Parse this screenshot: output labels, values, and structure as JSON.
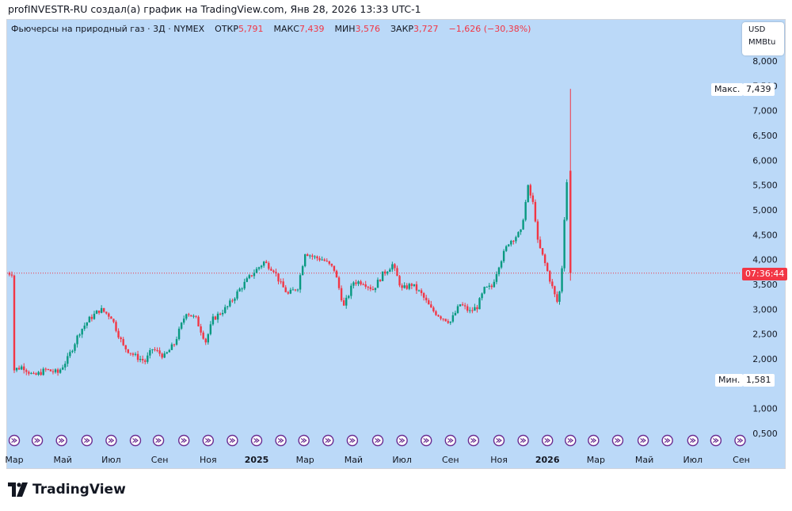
{
  "header": {
    "attribution": "profINVESTR-RU создал(а) график на TradingView.com, Янв 28, 2026 13:33 UTC-1"
  },
  "legend": {
    "symbol": "Фьючерсы на природный газ · 3Д · NYMEX",
    "open_label": "ОТКР",
    "open_value": "5,791",
    "high_label": "МАКС",
    "high_value": "7,439",
    "low_label": "МИН",
    "low_value": "3,576",
    "close_label": "ЗАКР",
    "close_value": "3,727",
    "change": "−1,626 (−30,38%)"
  },
  "unit_box": {
    "currency": "USD",
    "unit": "MMBtu"
  },
  "markers": {
    "max_label": "Макс.",
    "max_value": "7,439",
    "min_label": "Мин.",
    "min_value": "1,581",
    "timer": "07:36:44"
  },
  "brand": {
    "name": "TradingView"
  },
  "colors": {
    "up": "#089981",
    "down": "#f23645",
    "background": "#bbd9f8",
    "event_icon": "#6a2c91"
  },
  "chart_data": {
    "type": "candlestick",
    "ylim": [
      0.25,
      8.3
    ],
    "y_ticks": [
      {
        "v": 8.0,
        "label": "8,000"
      },
      {
        "v": 7.5,
        "label": "7,500"
      },
      {
        "v": 7.0,
        "label": "7,000"
      },
      {
        "v": 6.5,
        "label": "6,500"
      },
      {
        "v": 6.0,
        "label": "6,000"
      },
      {
        "v": 5.5,
        "label": "5,500"
      },
      {
        "v": 5.0,
        "label": "5,000"
      },
      {
        "v": 4.5,
        "label": "4,500"
      },
      {
        "v": 4.0,
        "label": "4,000"
      },
      {
        "v": 3.5,
        "label": "3,500"
      },
      {
        "v": 3.0,
        "label": "3,000"
      },
      {
        "v": 2.5,
        "label": "2,500"
      },
      {
        "v": 2.0,
        "label": "2,000"
      },
      {
        "v": 1.0,
        "label": "1,000"
      },
      {
        "v": 0.5,
        "label": "0,500"
      }
    ],
    "x_ticks": [
      {
        "t": 0.0,
        "label": "Мар",
        "bold": false
      },
      {
        "t": 2.0,
        "label": "Май",
        "bold": false
      },
      {
        "t": 4.0,
        "label": "Июл",
        "bold": false
      },
      {
        "t": 6.0,
        "label": "Сен",
        "bold": false
      },
      {
        "t": 8.0,
        "label": "Ноя",
        "bold": false
      },
      {
        "t": 10.0,
        "label": "2025",
        "bold": true
      },
      {
        "t": 12.0,
        "label": "Мар",
        "bold": false
      },
      {
        "t": 14.0,
        "label": "Май",
        "bold": false
      },
      {
        "t": 16.0,
        "label": "Июл",
        "bold": false
      },
      {
        "t": 18.0,
        "label": "Сен",
        "bold": false
      },
      {
        "t": 20.0,
        "label": "Ноя",
        "bold": false
      },
      {
        "t": 22.0,
        "label": "2026",
        "bold": true
      },
      {
        "t": 24.0,
        "label": "Мар",
        "bold": false
      },
      {
        "t": 26.0,
        "label": "Май",
        "bold": false
      },
      {
        "t": 28.0,
        "label": "Июл",
        "bold": false
      },
      {
        "t": 30.0,
        "label": "Сен",
        "bold": false
      }
    ],
    "last_close": 3.727,
    "anchors": [
      [
        0.0,
        1.78
      ],
      [
        0.35,
        1.85
      ],
      [
        0.8,
        1.65
      ],
      [
        1.3,
        1.78
      ],
      [
        1.8,
        1.72
      ],
      [
        2.2,
        2.0
      ],
      [
        2.7,
        2.55
      ],
      [
        3.1,
        2.8
      ],
      [
        3.55,
        3.0
      ],
      [
        4.0,
        2.85
      ],
      [
        4.5,
        2.25
      ],
      [
        5.0,
        2.05
      ],
      [
        5.4,
        1.95
      ],
      [
        5.7,
        2.2
      ],
      [
        6.2,
        2.05
      ],
      [
        6.6,
        2.3
      ],
      [
        7.1,
        2.95
      ],
      [
        7.5,
        2.8
      ],
      [
        7.9,
        2.35
      ],
      [
        8.2,
        2.8
      ],
      [
        8.8,
        3.05
      ],
      [
        9.3,
        3.4
      ],
      [
        9.8,
        3.7
      ],
      [
        10.3,
        3.95
      ],
      [
        10.7,
        3.8
      ],
      [
        11.0,
        3.5
      ],
      [
        11.3,
        3.3
      ],
      [
        11.7,
        3.45
      ],
      [
        12.0,
        4.15
      ],
      [
        12.35,
        4.05
      ],
      [
        12.75,
        4.0
      ],
      [
        13.2,
        3.8
      ],
      [
        13.6,
        3.05
      ],
      [
        14.0,
        3.55
      ],
      [
        14.4,
        3.55
      ],
      [
        14.8,
        3.4
      ],
      [
        15.2,
        3.7
      ],
      [
        15.6,
        3.9
      ],
      [
        16.0,
        3.4
      ],
      [
        16.4,
        3.5
      ],
      [
        16.8,
        3.3
      ],
      [
        17.2,
        3.0
      ],
      [
        17.6,
        2.85
      ],
      [
        18.0,
        2.75
      ],
      [
        18.4,
        3.1
      ],
      [
        18.8,
        2.95
      ],
      [
        19.1,
        3.05
      ],
      [
        19.4,
        3.4
      ],
      [
        19.7,
        3.45
      ],
      [
        20.0,
        3.9
      ],
      [
        20.4,
        4.35
      ],
      [
        20.9,
        4.55
      ],
      [
        21.2,
        5.45
      ],
      [
        21.45,
        5.05
      ],
      [
        21.6,
        4.35
      ],
      [
        21.85,
        4.0
      ],
      [
        22.1,
        3.6
      ],
      [
        22.35,
        3.2
      ],
      [
        22.45,
        3.1
      ],
      [
        22.6,
        3.85
      ],
      [
        22.75,
        5.35
      ],
      [
        22.85,
        5.79
      ],
      [
        22.95,
        3.73
      ]
    ],
    "event_icons": [
      0.0,
      0.95,
      1.95,
      3.0,
      4.0,
      5.0,
      5.95,
      7.0,
      8.0,
      9.0,
      10.0,
      11.0,
      11.95,
      12.95,
      13.95,
      15.0,
      16.0,
      17.0,
      18.0,
      18.95,
      20.0,
      21.0,
      22.0,
      22.95,
      23.9,
      24.9,
      25.95,
      26.95,
      28.0,
      28.95,
      29.95
    ],
    "notes": "Natural gas futures 3-day candlesticks, Mar 2024 – Jan 2026. t = months since the first (Mar) label; values in USD/MMBtu."
  }
}
